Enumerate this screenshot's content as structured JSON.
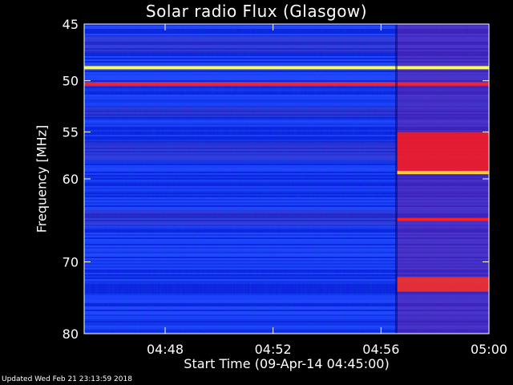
{
  "footer": "Updated Wed Feb 21 23:13:59 2018",
  "chart_data": {
    "type": "heatmap",
    "title": "Solar radio Flux (Glasgow)",
    "xlabel": "Start Time (09-Apr-14 04:45:00)",
    "ylabel": "Frequency [MHz]",
    "xlim": [
      "04:45:00",
      "05:00:00"
    ],
    "ylim": [
      45,
      80
    ],
    "y_scale": "log",
    "x_ticks": [
      "04:48",
      "04:52",
      "04:56",
      "05:00"
    ],
    "y_ticks": [
      45,
      50,
      55,
      60,
      70,
      80
    ],
    "colormap": [
      "#0000ff",
      "#800080",
      "#ff0000",
      "#ffff00"
    ],
    "background_color": "#1a3cff",
    "burst_onset": "04:56:35",
    "bands": [
      {
        "freq": 48.8,
        "color": "#ffff40",
        "span": "full"
      },
      {
        "freq": 50.3,
        "color": "#ff2020",
        "span": "full"
      },
      {
        "freq": 59.3,
        "color": "#ffcc40",
        "span": "after-onset"
      },
      {
        "freq": 64.7,
        "color": "#ff2020",
        "span": "after-onset"
      }
    ],
    "enhanced_regions": [
      {
        "freq_range": [
          55,
          59.2
        ],
        "color": "#ff1a1a",
        "span": "after-onset"
      },
      {
        "freq_range": [
          72,
          74
        ],
        "color": "#ff3020",
        "span": "after-onset"
      }
    ]
  }
}
